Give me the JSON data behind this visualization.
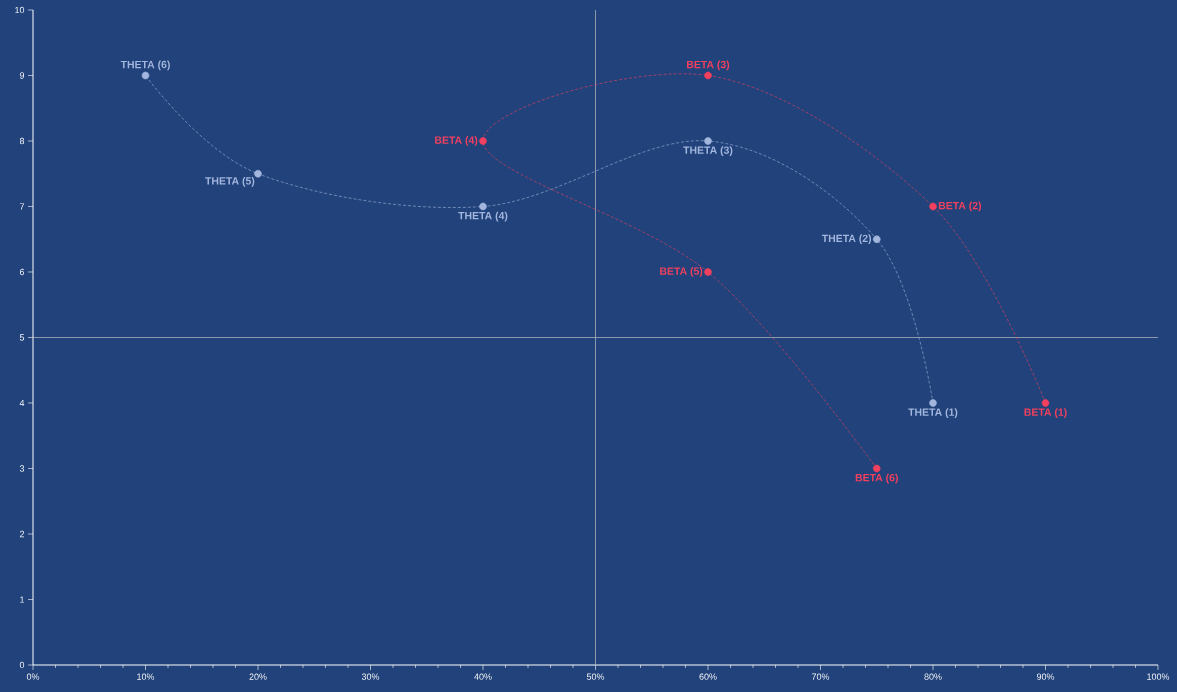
{
  "chart_data": {
    "type": "line",
    "xlim": [
      0,
      100
    ],
    "ylim": [
      0,
      10
    ],
    "xticks": [
      {
        "value": 0,
        "label": "0%"
      },
      {
        "value": 10,
        "label": "10%"
      },
      {
        "value": 20,
        "label": "20%"
      },
      {
        "value": 30,
        "label": "30%"
      },
      {
        "value": 40,
        "label": "40%"
      },
      {
        "value": 50,
        "label": "50%"
      },
      {
        "value": 60,
        "label": "60%"
      },
      {
        "value": 70,
        "label": "70%"
      },
      {
        "value": 80,
        "label": "80%"
      },
      {
        "value": 90,
        "label": "90%"
      },
      {
        "value": 100,
        "label": "100%"
      }
    ],
    "yticks": [
      0,
      1,
      2,
      3,
      4,
      5,
      6,
      7,
      8,
      9,
      10
    ],
    "marker": "circle",
    "line_style": "dashed",
    "series": [
      {
        "color": "#a3b6de",
        "x": [
          80,
          75,
          60,
          40,
          20,
          10
        ],
        "values": [
          4,
          6.5,
          8,
          7,
          7.5,
          9
        ]
      },
      {
        "color": "#f2405e",
        "x": [
          90,
          80,
          60,
          40,
          60,
          75
        ],
        "values": [
          4,
          7,
          9,
          8,
          6,
          3
        ]
      }
    ],
    "annotations": [
      {
        "text": "THETA (1)",
        "x": 80,
        "y": 4
      },
      {
        "text": "THETA (2)",
        "x": 75,
        "y": 6.5
      },
      {
        "text": "THETA (3)",
        "x": 60,
        "y": 8
      },
      {
        "text": "THETA (4)",
        "x": 40,
        "y": 7
      },
      {
        "text": "THETA (5)",
        "x": 20,
        "y": 7.5
      },
      {
        "text": "THETA (6)",
        "x": 10,
        "y": 9
      },
      {
        "text": "BETA (1)",
        "x": 90,
        "y": 4
      },
      {
        "text": "BETA (2)",
        "x": 80,
        "y": 7
      },
      {
        "text": "BETA (3)",
        "x": 60,
        "y": 9
      },
      {
        "text": "BETA (4)",
        "x": 40,
        "y": 8
      },
      {
        "text": "BETA (5)",
        "x": 60,
        "y": 6
      },
      {
        "text": "BETA (6)",
        "x": 75,
        "y": 3
      }
    ],
    "ref_lines": [
      {
        "axis": "x",
        "value": 50,
        "color": "#a9afbd"
      },
      {
        "axis": "y",
        "value": 5,
        "color": "#a9afbd"
      }
    ]
  }
}
